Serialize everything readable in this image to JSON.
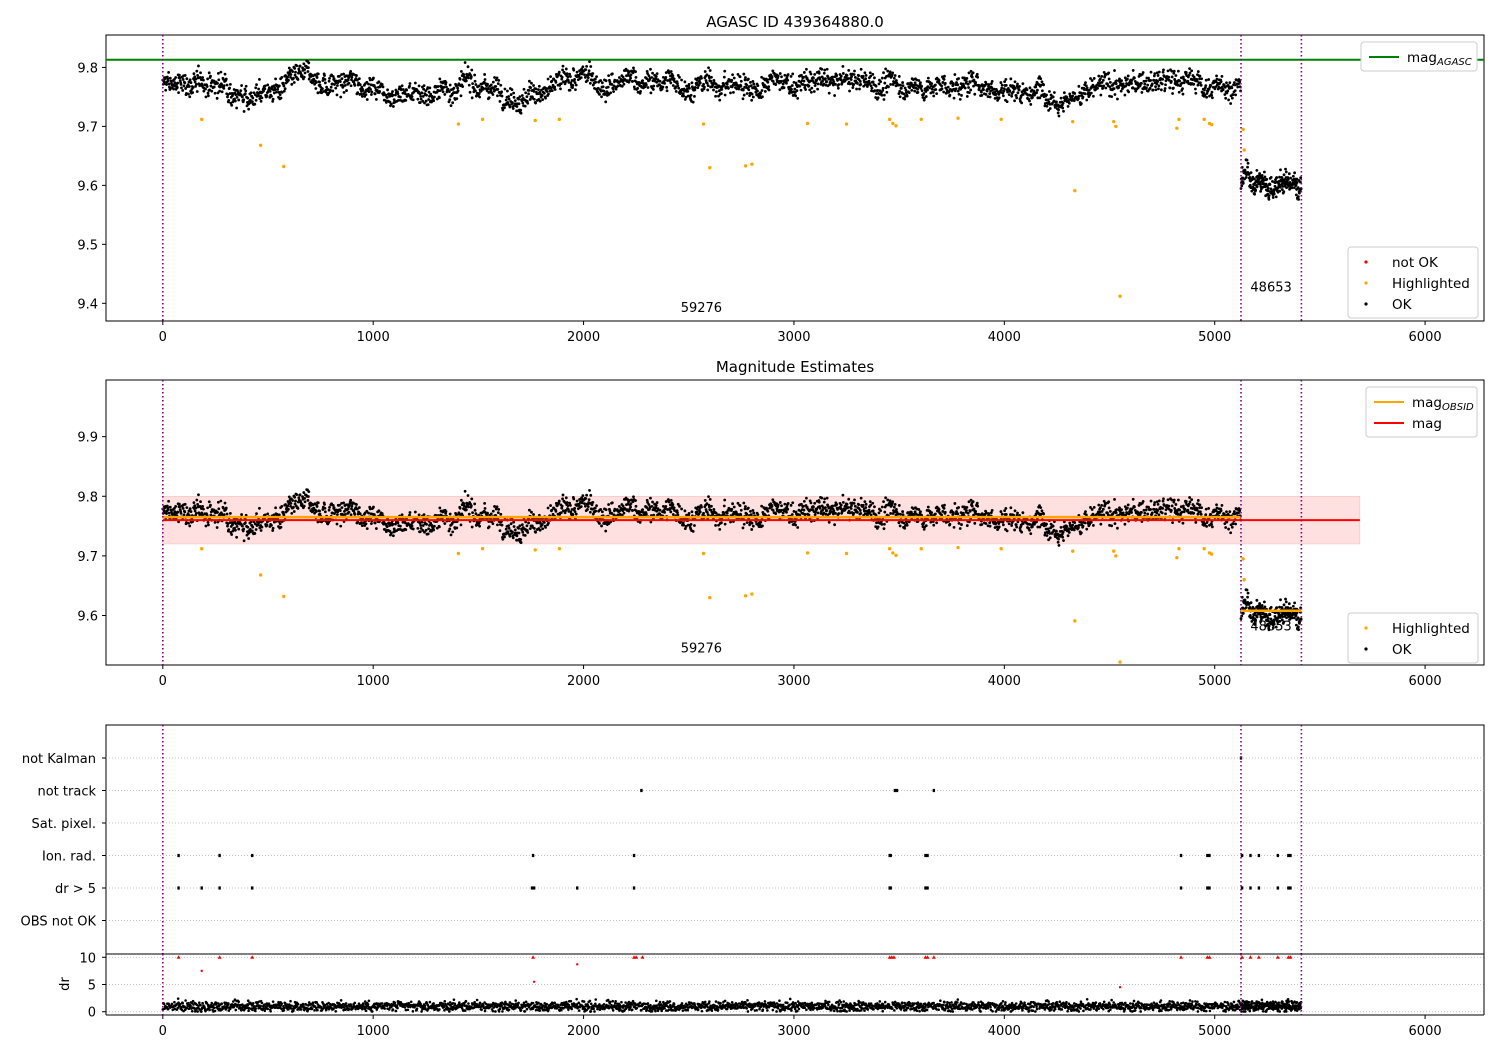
{
  "figure": {
    "agasc_id_title": "AGASC ID 439364880.0"
  },
  "chart_data": [
    {
      "type": "scatter",
      "title": "AGASC ID 439364880.0",
      "xlabel": "",
      "ylabel": "",
      "xlim": [
        -270,
        6280
      ],
      "ylim": [
        9.37,
        9.855
      ],
      "xticks": [
        0,
        1000,
        2000,
        3000,
        4000,
        5000,
        6000
      ],
      "xtick_labels": [
        "0",
        "1000",
        "2000",
        "3000",
        "4000",
        "5000",
        "6000"
      ],
      "yticks": [
        9.4,
        9.5,
        9.6,
        9.7,
        9.8
      ],
      "ytick_labels": [
        "9.4",
        "9.5",
        "9.6",
        "9.7",
        "9.8"
      ],
      "obs_boundaries": [
        0,
        5125,
        5412
      ],
      "obs_labels": [
        {
          "text": "59276",
          "x": 2560,
          "y": 9.385
        },
        {
          "text": "48653",
          "x": 5268,
          "y": 9.42
        }
      ],
      "agasc_mag": 9.813,
      "legend": {
        "position": "top-right",
        "entries": [
          {
            "label": "mag",
            "sub": "AGASC",
            "color": "#008000"
          }
        ]
      },
      "legend2": {
        "position": "lower-right",
        "entries": [
          {
            "label": "not OK",
            "color": "#ff0000"
          },
          {
            "label": "Highlighted",
            "color": "#ffa500"
          },
          {
            "label": "OK",
            "color": "#000000"
          }
        ]
      },
      "ok_series": {
        "name": "OK",
        "segments": [
          {
            "x0": 0,
            "x1": 5125,
            "mean": 9.77,
            "spread": 0.05,
            "n": 2600
          },
          {
            "x0": 5125,
            "x1": 5412,
            "mean": 9.605,
            "spread": 0.05,
            "n": 240
          }
        ]
      },
      "highlighted": {
        "name": "Highlighted",
        "x": [
          185,
          465,
          575,
          1405,
          1520,
          1770,
          1885,
          2570,
          2600,
          2770,
          2800,
          3065,
          3250,
          3455,
          3470,
          3485,
          3605,
          3780,
          3985,
          4325,
          4335,
          4520,
          4530,
          4550,
          4820,
          4830,
          4950,
          4975,
          4985,
          5135,
          5140
        ],
        "y": [
          9.712,
          9.668,
          9.632,
          9.704,
          9.712,
          9.71,
          9.712,
          9.704,
          9.63,
          9.633,
          9.636,
          9.705,
          9.704,
          9.712,
          9.705,
          9.701,
          9.712,
          9.714,
          9.712,
          9.708,
          9.591,
          9.708,
          9.7,
          9.412,
          9.697,
          9.712,
          9.712,
          9.705,
          9.703,
          9.695,
          9.66
        ]
      },
      "not_ok": {
        "name": "not OK",
        "x": [],
        "y": []
      }
    },
    {
      "type": "scatter",
      "title": "Magnitude Estimates",
      "xlabel": "",
      "ylabel": "",
      "xlim": [
        -270,
        6280
      ],
      "ylim": [
        9.517,
        9.995
      ],
      "xticks": [
        0,
        1000,
        2000,
        3000,
        4000,
        5000,
        6000
      ],
      "xtick_labels": [
        "0",
        "1000",
        "2000",
        "3000",
        "4000",
        "5000",
        "6000"
      ],
      "yticks": [
        9.6,
        9.7,
        9.8,
        9.9
      ],
      "ytick_labels": [
        "9.6",
        "9.7",
        "9.8",
        "9.9"
      ],
      "obs_boundaries": [
        0,
        5125,
        5412
      ],
      "obs_labels": [
        {
          "text": "59276",
          "x": 2560,
          "y": 9.538
        },
        {
          "text": "48653",
          "x": 5268,
          "y": 9.575
        }
      ],
      "mag": 9.76,
      "mag_band": [
        9.72,
        9.8
      ],
      "mag_band_xrange": [
        0,
        5690
      ],
      "mag_obsid": [
        {
          "x0": 0,
          "x1": 5125,
          "value": 9.765
        },
        {
          "x0": 5125,
          "x1": 5412,
          "value": 9.608
        }
      ],
      "legend": {
        "position": "top-right",
        "entries": [
          {
            "label": "mag",
            "sub": "OBSID",
            "color": "#ffa500"
          },
          {
            "label": "mag",
            "sub": "",
            "color": "#ff0000"
          }
        ]
      },
      "legend2": {
        "position": "lower-right",
        "entries": [
          {
            "label": "Highlighted",
            "color": "#ffa500"
          },
          {
            "label": "OK",
            "color": "#000000"
          }
        ]
      }
    },
    {
      "type": "scatter",
      "title": "",
      "xlim": [
        -270,
        6280
      ],
      "xticks": [
        0,
        1000,
        2000,
        3000,
        4000,
        5000,
        6000
      ],
      "xtick_labels": [
        "0",
        "1000",
        "2000",
        "3000",
        "4000",
        "5000",
        "6000"
      ],
      "flag_categories": [
        "not Kalman",
        "not track",
        "Sat. pixel.",
        "Ion. rad.",
        "dr > 5",
        "OBS not OK"
      ],
      "flags": {
        "not Kalman": [
          5125
        ],
        "not track": [
          2275,
          3480,
          3490,
          3665
        ],
        "Sat. pixel.": [],
        "Ion. rad.": [
          75,
          270,
          425,
          1760,
          2240,
          3455,
          3460,
          3625,
          3635,
          4840,
          4965,
          4975,
          5130,
          5170,
          5210,
          5300,
          5350,
          5360
        ],
        "dr > 5": [
          75,
          185,
          270,
          425,
          1755,
          1765,
          1970,
          2240,
          3455,
          3460,
          3625,
          3635,
          4840,
          4965,
          4975,
          5130,
          5170,
          5210,
          5300,
          5350,
          5360
        ],
        "OBS not OK": []
      },
      "dr_ylabel": "dr",
      "dr_yticks": [
        0,
        5,
        10
      ],
      "dr_ytick_labels": [
        "0",
        "5",
        "10"
      ],
      "dr_ylim": [
        -0.6,
        10.6
      ],
      "dr_clip": 10,
      "dr_mean": 1.0,
      "dr_large": {
        "x": [
          75,
          185,
          270,
          425,
          1760,
          1765,
          1970,
          2240,
          2250,
          2280,
          3455,
          3465,
          3475,
          3625,
          3635,
          3665,
          4550,
          4840,
          4965,
          4975,
          5130,
          5170,
          5210,
          5300,
          5350,
          5360
        ],
        "y": [
          10,
          7.5,
          10,
          10,
          10,
          5.5,
          8.7,
          10,
          10,
          10,
          10,
          10,
          10,
          10,
          10,
          10,
          4.5,
          10,
          10,
          10,
          10,
          10,
          10,
          10,
          10,
          10
        ]
      },
      "obs_boundaries": [
        0,
        5125,
        5412
      ]
    }
  ],
  "colors": {
    "ok": "#000000",
    "highlighted": "#ffa500",
    "not_ok": "#ff0000",
    "agasc": "#008000",
    "mag": "#ff0000",
    "obsid": "#ffa500",
    "boundary": "#800080",
    "band": "#ffe0e0"
  }
}
